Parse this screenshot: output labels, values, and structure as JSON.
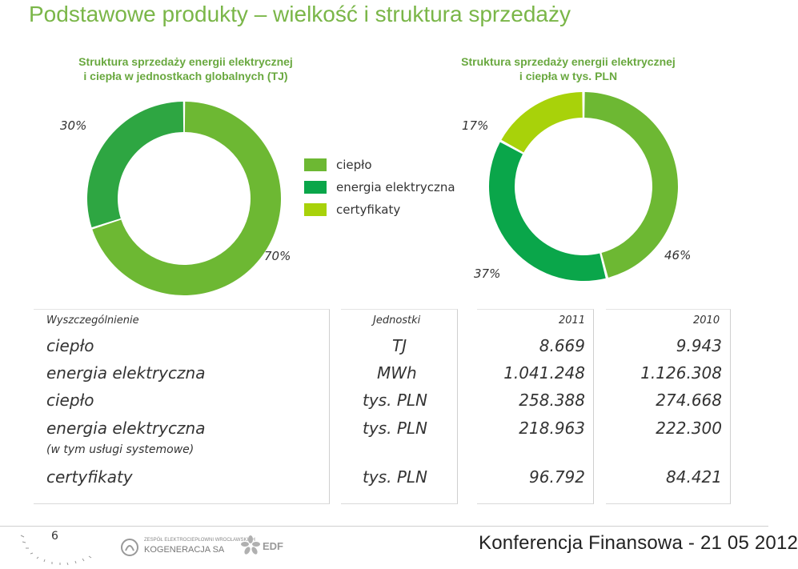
{
  "page": {
    "title": "Podstawowe produkty – wielkość i struktura sprzedaży",
    "page_number": "6",
    "footer_text": "Konferencja Finansowa - 21 05 2012"
  },
  "logos": {
    "kogeneracja_small": "ZESPÓŁ ELEKTROCIEPŁOWNI WROCŁAWSKICH",
    "kogeneracja_name": "KOGENERACJA SA",
    "edf": "EDF"
  },
  "colors": {
    "title": "#7ab648",
    "cieplo": "#6db833",
    "energia": "#0aa64a",
    "certyfikaty": "#a8d20a"
  },
  "legend": {
    "items": [
      {
        "label": "ciepło",
        "color": "#6db833"
      },
      {
        "label": "energia elektryczna",
        "color": "#0aa64a"
      },
      {
        "label": "certyfikaty",
        "color": "#a8d20a"
      }
    ]
  },
  "chart_data": [
    {
      "type": "pie",
      "title": "Struktura sprzedaży energii elektrycznej i ciepła w jednostkach globalnych (TJ)",
      "title_lines": [
        "Struktura sprzedaży energii elektrycznej",
        "i ciepła w jednostkach globalnych (TJ)"
      ],
      "donut": true,
      "slices": [
        {
          "name": "ciepło",
          "value": 70,
          "label": "70%",
          "color": "#6db833"
        },
        {
          "name": "energia elektryczna",
          "value": 30,
          "label": "30%",
          "color": "#2ea642"
        }
      ]
    },
    {
      "type": "pie",
      "title": "Struktura sprzedaży energii elektrycznej i ciepła w tys. PLN",
      "title_lines": [
        "Struktura sprzedaży energii elektrycznej",
        "i ciepła w tys. PLN"
      ],
      "donut": true,
      "slices": [
        {
          "name": "ciepło",
          "value": 46,
          "label": "46%",
          "color": "#6db833"
        },
        {
          "name": "energia elektryczna",
          "value": 37,
          "label": "37%",
          "color": "#0aa64a"
        },
        {
          "name": "certyfikaty",
          "value": 17,
          "label": "17%",
          "color": "#a8d20a"
        }
      ]
    }
  ],
  "table": {
    "headers": [
      "Wyszczególnienie",
      "Jednostki",
      "2011",
      "2010"
    ],
    "rows": [
      {
        "name": "ciepło",
        "unit": "TJ",
        "v2011": "8.669",
        "v2010": "9.943"
      },
      {
        "name": "energia elektryczna",
        "unit": "MWh",
        "v2011": "1.041.248",
        "v2010": "1.126.308"
      },
      {
        "name": "ciepło",
        "unit": "tys. PLN",
        "v2011": "258.388",
        "v2010": "274.668"
      },
      {
        "name": "energia elektryczna",
        "sub": "(w tym usługi systemowe)",
        "unit": "tys. PLN",
        "v2011": "218.963",
        "v2010": "222.300"
      },
      {
        "name": "certyfikaty",
        "unit": "tys. PLN",
        "v2011": "96.792",
        "v2010": "84.421"
      }
    ]
  }
}
